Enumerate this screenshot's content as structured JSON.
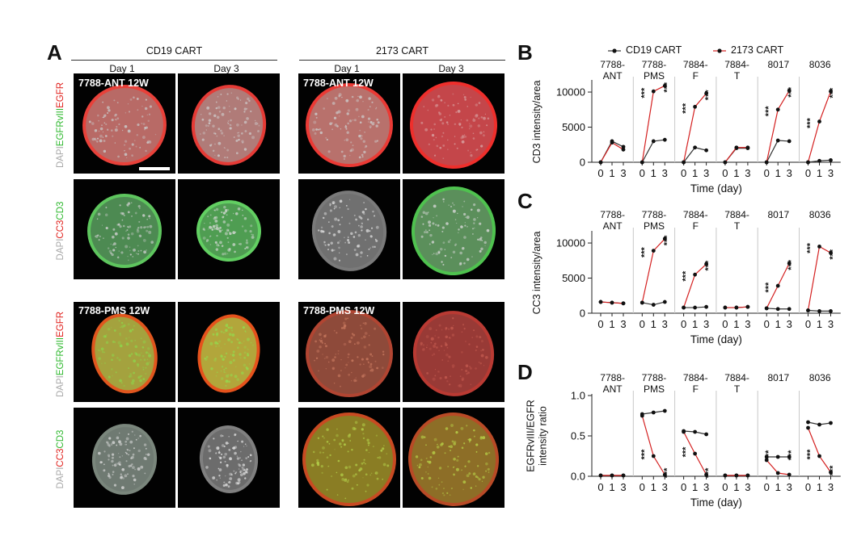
{
  "panel_a": {
    "letter": "A",
    "groups": [
      {
        "title": "CD19 CART",
        "columns": [
          "Day 1",
          "Day 3"
        ]
      },
      {
        "title": "2173 CART",
        "columns": [
          "Day 1",
          "Day 3"
        ]
      }
    ],
    "row_labels": [
      "7788-ANT 12W",
      "7788-PMS 12W"
    ],
    "stain_top": {
      "dapi": "DAPI",
      "green": "EGFRvIII",
      "red": "EGFR"
    },
    "stain_bottom": {
      "dapi": "DAPI",
      "red": "CC3",
      "green": "CD3"
    },
    "colors": {
      "dapi": "#a8a8a8",
      "red": "#e0201c",
      "green": "#2fb82f"
    }
  },
  "legend": {
    "cd19_label": "CD19 CART",
    "c2173_label": "2173 CART",
    "cd19_color": "#333333",
    "c2173_color": "#d42020"
  },
  "samples": [
    "7788-\nANT",
    "7788-\nPMS",
    "7884-\nF",
    "7884-\nT",
    "8017",
    "8036"
  ],
  "x_days": [
    0,
    1,
    3
  ],
  "xlabel": "Time (day)",
  "chart_data": [
    {
      "panel": "B",
      "type": "line",
      "ylabel": "CD3 intensity/area",
      "ylim": [
        0,
        11500
      ],
      "yticks": [
        0,
        5000,
        10000
      ],
      "facets": [
        {
          "sample": "7788-ANT",
          "cd19": [
            0,
            3000,
            2200
          ],
          "c2173": [
            0,
            2800,
            1800
          ],
          "stars_cd19": [],
          "stars_2173": []
        },
        {
          "sample": "7788-PMS",
          "cd19": [
            0,
            3000,
            3200
          ],
          "c2173": [
            0,
            10100,
            10900
          ],
          "stars_cd19": [],
          "stars_2173": [
            "***",
            "***"
          ]
        },
        {
          "sample": "7884-F",
          "cd19": [
            0,
            2100,
            1700
          ],
          "c2173": [
            0,
            7900,
            9800
          ],
          "stars_cd19": [],
          "stars_2173": [
            "***",
            "***"
          ]
        },
        {
          "sample": "7884-T",
          "cd19": [
            0,
            2000,
            2000
          ],
          "c2173": [
            0,
            2100,
            2100
          ],
          "stars_cd19": [],
          "stars_2173": []
        },
        {
          "sample": "8017",
          "cd19": [
            0,
            3100,
            3000
          ],
          "c2173": [
            0,
            7500,
            10200
          ],
          "stars_cd19": [],
          "stars_2173": [
            "***",
            "***"
          ]
        },
        {
          "sample": "8036",
          "cd19": [
            0,
            200,
            300
          ],
          "c2173": [
            0,
            5800,
            10100
          ],
          "stars_cd19": [],
          "stars_2173": [
            "***",
            "***"
          ]
        }
      ]
    },
    {
      "panel": "C",
      "type": "line",
      "ylabel": "CC3 intensity/area",
      "ylim": [
        0,
        11500
      ],
      "yticks": [
        0,
        5000,
        10000
      ],
      "facets": [
        {
          "sample": "7788-ANT",
          "cd19": [
            1600,
            1500,
            1400
          ],
          "c2173": [
            1600,
            1500,
            1400
          ],
          "stars_cd19": [],
          "stars_2173": []
        },
        {
          "sample": "7788-PMS",
          "cd19": [
            1500,
            1200,
            1600
          ],
          "c2173": [
            1500,
            8900,
            10600
          ],
          "stars_cd19": [],
          "stars_2173": [
            "***",
            "***"
          ]
        },
        {
          "sample": "7884-F",
          "cd19": [
            800,
            800,
            900
          ],
          "c2173": [
            800,
            5500,
            7000
          ],
          "stars_cd19": [],
          "stars_2173": [
            "***",
            "***"
          ]
        },
        {
          "sample": "7884-T",
          "cd19": [
            800,
            800,
            900
          ],
          "c2173": [
            800,
            800,
            900
          ],
          "stars_cd19": [],
          "stars_2173": []
        },
        {
          "sample": "8017",
          "cd19": [
            700,
            600,
            600
          ],
          "c2173": [
            700,
            3900,
            7100
          ],
          "stars_cd19": [],
          "stars_2173": [
            "***",
            "***"
          ]
        },
        {
          "sample": "8036",
          "cd19": [
            400,
            300,
            300
          ],
          "c2173": [
            400,
            9500,
            8600
          ],
          "stars_cd19": [],
          "stars_2173": [
            "***",
            "***"
          ]
        }
      ]
    },
    {
      "panel": "D",
      "type": "line",
      "ylabel": "EGFRvIII/EGFR\nintensity ratio",
      "ylim": [
        0,
        1.0
      ],
      "yticks": [
        0.0,
        0.5,
        1.0
      ],
      "ytick_labels": [
        "0.0",
        "0.5",
        "1.0"
      ],
      "facets": [
        {
          "sample": "7788-ANT",
          "cd19": [
            0.01,
            0.01,
            0.01
          ],
          "c2173": [
            0.01,
            0.01,
            0.01
          ],
          "stars_cd19": [],
          "stars_2173": []
        },
        {
          "sample": "7788-PMS",
          "cd19": [
            0.77,
            0.79,
            0.81
          ],
          "c2173": [
            0.75,
            0.25,
            0.02
          ],
          "stars_cd19": [],
          "stars_2173": [
            "***",
            "***"
          ]
        },
        {
          "sample": "7884-F",
          "cd19": [
            0.56,
            0.55,
            0.52
          ],
          "c2173": [
            0.55,
            0.28,
            0.02
          ],
          "stars_cd19": [],
          "stars_2173": [
            "***",
            "***"
          ]
        },
        {
          "sample": "7884-T",
          "cd19": [
            0.01,
            0.01,
            0.01
          ],
          "c2173": [
            0.01,
            0.01,
            0.01
          ],
          "stars_cd19": [],
          "stars_2173": []
        },
        {
          "sample": "8017",
          "cd19": [
            0.24,
            0.24,
            0.24
          ],
          "c2173": [
            0.2,
            0.04,
            0.02
          ],
          "stars_cd19": [
            "***",
            "***"
          ],
          "stars_2173": []
        },
        {
          "sample": "8036",
          "cd19": [
            0.67,
            0.64,
            0.66
          ],
          "c2173": [
            0.6,
            0.25,
            0.05
          ],
          "stars_cd19": [],
          "stars_2173": [
            "***",
            "***"
          ]
        }
      ]
    }
  ]
}
